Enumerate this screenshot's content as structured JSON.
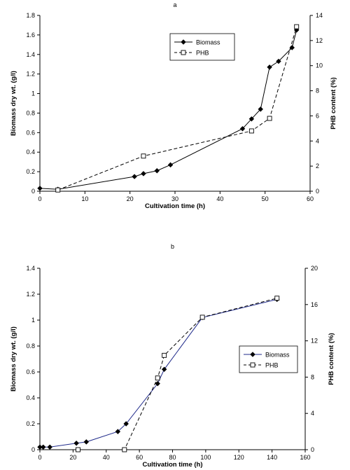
{
  "chart_data": [
    {
      "panel_label": "a",
      "type": "line",
      "xlabel": "Cultivation time (h)",
      "ylabel": "Biomass dry wt. (g/l)",
      "y2label": "PHB content (%)",
      "xlim": [
        0,
        60
      ],
      "ylim": [
        0,
        1.8
      ],
      "y2lim": [
        0,
        14
      ],
      "xticks": [
        "0",
        "10",
        "20",
        "30",
        "40",
        "50",
        "60"
      ],
      "yticks": [
        "0",
        "0.2",
        "0.4",
        "0.6",
        "0.8",
        "1",
        "1.2",
        "1.4",
        "1.6",
        "1.8"
      ],
      "y2ticks": [
        "0",
        "2",
        "4",
        "6",
        "8",
        "10",
        "12",
        "14"
      ],
      "legend": {
        "position": "top-right-inside",
        "items": [
          "Biomass",
          "PHB"
        ]
      },
      "series": [
        {
          "name": "Biomass",
          "axis": "left",
          "style": "solid-diamond",
          "color": "#000000",
          "x": [
            0,
            4,
            21,
            23,
            26,
            29,
            45,
            47,
            49,
            51,
            53,
            56,
            57
          ],
          "y": [
            0.03,
            0.02,
            0.15,
            0.18,
            0.21,
            0.27,
            0.64,
            0.74,
            0.84,
            1.27,
            1.33,
            1.47,
            1.65
          ]
        },
        {
          "name": "PHB",
          "axis": "right",
          "style": "dashed-open-square",
          "color": "#000000",
          "x": [
            4,
            23,
            47,
            51,
            57
          ],
          "y": [
            0.1,
            2.8,
            4.8,
            5.8,
            13.1
          ]
        }
      ]
    },
    {
      "panel_label": "b",
      "type": "line",
      "xlabel": "Cultivation time (h)",
      "ylabel": "Biomass dry wt. (g/l)",
      "y2label": "PHB content (%)",
      "xlim": [
        0,
        160
      ],
      "ylim": [
        0,
        1.4
      ],
      "y2lim": [
        0,
        20
      ],
      "xticks": [
        "0",
        "20",
        "40",
        "60",
        "80",
        "100",
        "120",
        "140",
        "160"
      ],
      "yticks": [
        "0",
        "0.2",
        "0.4",
        "0.6",
        "0.8",
        "1",
        "1.2",
        "1.4"
      ],
      "y2ticks": [
        "0",
        "4",
        "8",
        "12",
        "16",
        "20"
      ],
      "legend": {
        "position": "right-middle-inside",
        "items": [
          "Biomass",
          "PHB"
        ]
      },
      "series": [
        {
          "name": "Biomass",
          "axis": "left",
          "style": "solid-diamond",
          "color": "#1f2a8a",
          "x": [
            0,
            2,
            6,
            22,
            28,
            47,
            52,
            71,
            75,
            98,
            143
          ],
          "y": [
            0.02,
            0.02,
            0.02,
            0.05,
            0.06,
            0.14,
            0.2,
            0.51,
            0.62,
            1.02,
            1.16
          ]
        },
        {
          "name": "PHB",
          "axis": "right",
          "style": "dashed-open-square",
          "color": "#000000",
          "x": [
            23,
            51,
            71,
            75,
            98,
            143
          ],
          "y": [
            0.0,
            0.0,
            7.9,
            10.4,
            14.6,
            16.7
          ]
        }
      ]
    }
  ]
}
